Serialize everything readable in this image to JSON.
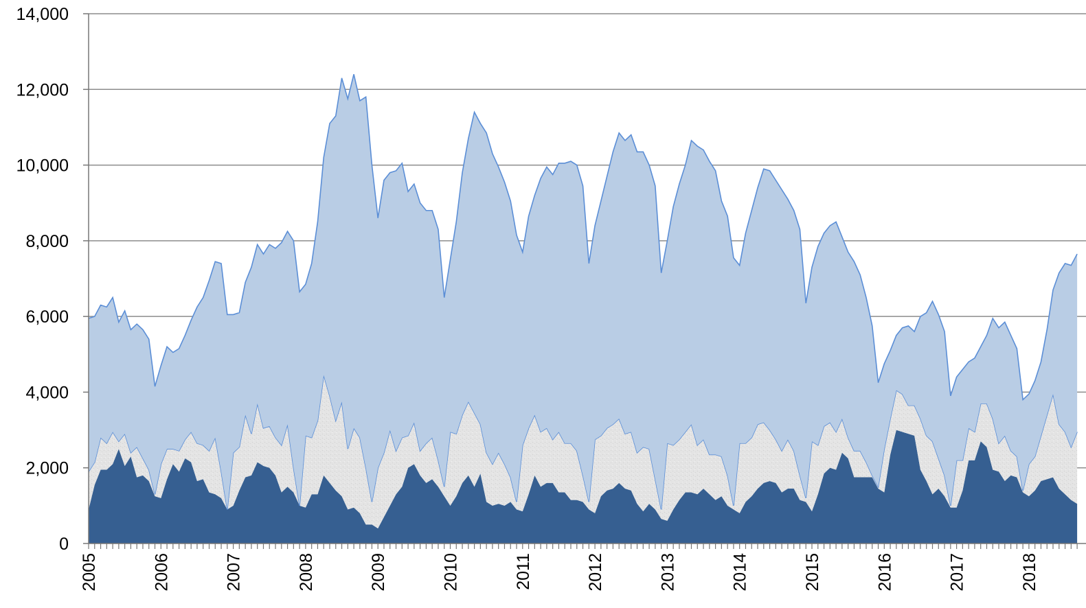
{
  "chart_data": {
    "type": "stacked-area",
    "categories": [
      "2005",
      null,
      null,
      null,
      null,
      null,
      null,
      null,
      null,
      null,
      null,
      null,
      "2006",
      null,
      null,
      null,
      null,
      null,
      null,
      null,
      null,
      null,
      null,
      null,
      "2007",
      null,
      null,
      null,
      null,
      null,
      null,
      null,
      null,
      null,
      null,
      null,
      "2008",
      null,
      null,
      null,
      null,
      null,
      null,
      null,
      null,
      null,
      null,
      null,
      "2009",
      null,
      null,
      null,
      null,
      null,
      null,
      null,
      null,
      null,
      null,
      null,
      "2010",
      null,
      null,
      null,
      null,
      null,
      null,
      null,
      null,
      null,
      null,
      null,
      "2011",
      null,
      null,
      null,
      null,
      null,
      null,
      null,
      null,
      null,
      null,
      null,
      "2012",
      null,
      null,
      null,
      null,
      null,
      null,
      null,
      null,
      null,
      null,
      null,
      "2013",
      null,
      null,
      null,
      null,
      null,
      null,
      null,
      null,
      null,
      null,
      null,
      "2014",
      null,
      null,
      null,
      null,
      null,
      null,
      null,
      null,
      null,
      null,
      null,
      "2015",
      null,
      null,
      null,
      null,
      null,
      null,
      null,
      null,
      null,
      null,
      null,
      "2016",
      null,
      null,
      null,
      null,
      null,
      null,
      null,
      null,
      null,
      null,
      null,
      "2017",
      null,
      null,
      null,
      null,
      null,
      null,
      null,
      null,
      null,
      null,
      null,
      "2018",
      null,
      null,
      null,
      null,
      null,
      null,
      null,
      null
    ],
    "series": [
      {
        "color": "#365f91",
        "values": [
          900,
          1550,
          1950,
          1950,
          2100,
          2500,
          2050,
          2300,
          1750,
          1800,
          1650,
          1250,
          1200,
          1700,
          2100,
          1900,
          2250,
          2150,
          1650,
          1700,
          1350,
          1300,
          1200,
          900,
          1000,
          1400,
          1750,
          1800,
          2150,
          2050,
          2000,
          1800,
          1350,
          1500,
          1350,
          1000,
          950,
          1300,
          1300,
          1800,
          1600,
          1400,
          1250,
          900,
          950,
          800,
          500,
          500,
          400,
          700,
          1000,
          1300,
          1500,
          2000,
          2100,
          1800,
          1600,
          1700,
          1500,
          1250,
          1000,
          1250,
          1600,
          1800,
          1500,
          1850,
          1100,
          1000,
          1050,
          1000,
          1100,
          900,
          850,
          1300,
          1800,
          1500,
          1600,
          1600,
          1350,
          1350,
          1150,
          1150,
          1100,
          900,
          800,
          1250,
          1400,
          1450,
          1600,
          1450,
          1400,
          1050,
          850,
          1050,
          900,
          650,
          600,
          900,
          1150,
          1350,
          1350,
          1300,
          1450,
          1300,
          1150,
          1250,
          1000,
          900,
          800,
          1100,
          1250,
          1450,
          1600,
          1650,
          1600,
          1350,
          1450,
          1450,
          1150,
          1100,
          850,
          1300,
          1850,
          2000,
          1950,
          2400,
          2250,
          1750,
          1750,
          1750,
          1750,
          1450,
          1350,
          2350,
          3000,
          2950,
          2900,
          2850,
          1950,
          1650,
          1300,
          1450,
          1250,
          950,
          950,
          1400,
          2200,
          2200,
          2700,
          2550,
          1950,
          1900,
          1650,
          1800,
          1750,
          1350,
          1250,
          1400,
          1650,
          1700,
          1750,
          1450,
          1300,
          1150,
          1050
        ]
      },
      {
        "color": "#e4e4e4",
        "values": [
          1000,
          600,
          850,
          700,
          850,
          200,
          850,
          100,
          800,
          450,
          300,
          50,
          900,
          800,
          400,
          550,
          500,
          800,
          1000,
          900,
          1100,
          1500,
          700,
          0,
          1400,
          1150,
          1650,
          1100,
          1550,
          1000,
          1100,
          1000,
          1250,
          1650,
          650,
          0,
          1900,
          1500,
          1950,
          2650,
          2300,
          1850,
          2500,
          1600,
          2100,
          2000,
          1500,
          600,
          1600,
          1700,
          2000,
          1150,
          1300,
          850,
          1100,
          650,
          1050,
          1100,
          700,
          250,
          1950,
          1650,
          1800,
          1950,
          1950,
          1300,
          1300,
          1100,
          1350,
          1100,
          650,
          200,
          1750,
          1750,
          1600,
          1450,
          1450,
          1150,
          1600,
          1300,
          1500,
          1300,
          700,
          200,
          1950,
          1600,
          1650,
          1700,
          1700,
          1450,
          1550,
          1350,
          1700,
          1450,
          800,
          250,
          2050,
          1700,
          1600,
          1600,
          1800,
          1300,
          1300,
          1050,
          1200,
          1050,
          800,
          100,
          1850,
          1550,
          1550,
          1700,
          1600,
          1350,
          1150,
          1100,
          1300,
          1000,
          650,
          100,
          1850,
          1300,
          1250,
          1200,
          1000,
          900,
          550,
          700,
          700,
          400,
          50,
          50,
          1150,
          950,
          1050,
          1000,
          750,
          800,
          1350,
          1200,
          1400,
          800,
          550,
          50,
          1250,
          800,
          850,
          750,
          1000,
          1150,
          1350,
          750,
          1200,
          650,
          550,
          50,
          850,
          900,
          1200,
          1700,
          2200,
          1700,
          1650,
          1400,
          1900
        ]
      },
      {
        "color": "#b9cde5",
        "values": [
          4050,
          3850,
          3500,
          3600,
          3550,
          3150,
          3250,
          3250,
          3250,
          3400,
          3450,
          2850,
          2600,
          2700,
          2550,
          2700,
          2750,
          2950,
          3600,
          3900,
          4500,
          4650,
          5500,
          5150,
          3650,
          3550,
          3500,
          4400,
          4200,
          4600,
          4800,
          5000,
          5350,
          5100,
          6000,
          5650,
          4000,
          4600,
          5250,
          5750,
          7200,
          8050,
          8550,
          9250,
          9350,
          8900,
          9800,
          8900,
          6600,
          7200,
          6800,
          7400,
          7250,
          6450,
          6300,
          6550,
          6150,
          6000,
          6100,
          5000,
          4550,
          5600,
          6400,
          6950,
          7950,
          7950,
          8450,
          8200,
          7550,
          7450,
          7300,
          7050,
          5100,
          5600,
          5800,
          6700,
          6900,
          7000,
          7100,
          7400,
          7450,
          7550,
          7650,
          6300,
          5650,
          6200,
          6650,
          7200,
          7550,
          7750,
          7850,
          7950,
          7800,
          7500,
          7750,
          6250,
          5350,
          6300,
          6750,
          7050,
          7500,
          7900,
          7650,
          7750,
          7500,
          6750,
          6850,
          6550,
          4700,
          5550,
          6000,
          6250,
          6700,
          6850,
          6850,
          6900,
          6350,
          6350,
          6500,
          5150,
          4600,
          5250,
          5100,
          5200,
          5550,
          4800,
          4900,
          5000,
          4650,
          4350,
          3950,
          2750,
          2250,
          1800,
          1450,
          1750,
          2100,
          1950,
          2700,
          3250,
          3700,
          3800,
          3800,
          2900,
          2200,
          2400,
          1750,
          1950,
          1500,
          1800,
          2650,
          3050,
          3000,
          3050,
          2850,
          2400,
          1850,
          2000,
          1950,
          2250,
          2750,
          4000,
          4450,
          4800,
          4700
        ]
      }
    ],
    "ylim": [
      0,
      14000
    ],
    "yticks": [
      0,
      {
        "value": 2000,
        "label": "2,000"
      },
      {
        "value": 4000,
        "label": "4,000"
      },
      {
        "value": 6000,
        "label": "6,000"
      },
      {
        "value": 8000,
        "label": "8,000"
      },
      {
        "value": 10000,
        "label": "10,000"
      },
      {
        "value": 12000,
        "label": "12,000"
      },
      {
        "value": 14000,
        "label": "14,000"
      }
    ],
    "grid": true
  }
}
